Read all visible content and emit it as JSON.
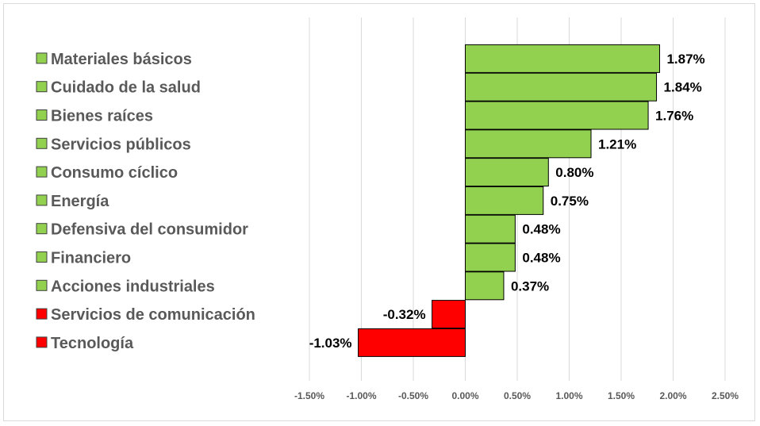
{
  "chart_data": {
    "type": "bar",
    "orientation": "horizontal",
    "categories": [
      "Materiales básicos",
      "Cuidado de la salud",
      "Bienes raíces",
      "Servicios públicos",
      "Consumo cíclico",
      "Energía",
      "Defensiva del consumidor",
      "Financiero",
      "Acciones industriales",
      "Servicios de comunicación",
      "Tecnología"
    ],
    "values": [
      1.87,
      1.84,
      1.76,
      1.21,
      0.8,
      0.75,
      0.48,
      0.48,
      0.37,
      -0.32,
      -1.03
    ],
    "value_labels": [
      "1.87%",
      "1.84%",
      "1.76%",
      "1.21%",
      "0.80%",
      "0.75%",
      "0.48%",
      "0.48%",
      "0.37%",
      "-0.32%",
      "-1.03%"
    ],
    "x_ticks": [
      -1.5,
      -1.0,
      -0.5,
      0.0,
      0.5,
      1.0,
      1.5,
      2.0,
      2.5
    ],
    "x_tick_labels": [
      "-1.50%",
      "-1.00%",
      "-0.50%",
      "0.00%",
      "0.50%",
      "1.00%",
      "1.50%",
      "2.00%",
      "2.50%"
    ],
    "xlim": [
      -1.5,
      2.5
    ],
    "title": "",
    "xlabel": "",
    "ylabel": "",
    "grid": "vertical",
    "legend_position": "left",
    "colors": {
      "positive": "#92d050",
      "negative": "#ff0000",
      "bar_border": "#000000",
      "grid": "#d9d9d9",
      "legend_text": "#595959",
      "tick_text": "#595959"
    }
  }
}
